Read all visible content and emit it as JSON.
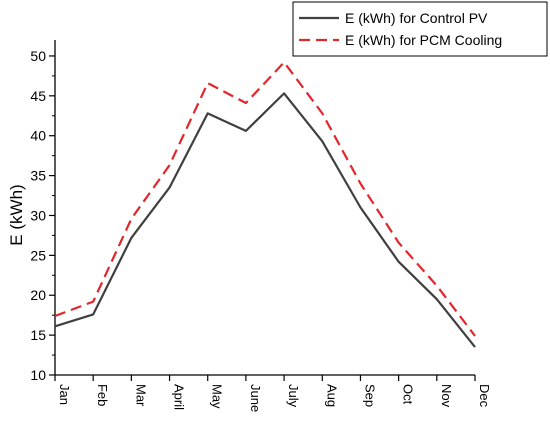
{
  "chart_data": {
    "type": "line",
    "title": "",
    "xlabel": "",
    "ylabel": "E (kWh)",
    "categories": [
      "Jan",
      "Feb",
      "Mar",
      "April",
      "May",
      "June",
      "July",
      "Aug",
      "Sep",
      "Oct",
      "Nov",
      "Dec"
    ],
    "ylim": [
      10,
      52
    ],
    "yticks": [
      "10",
      "15",
      "20",
      "25",
      "30",
      "35",
      "40",
      "45",
      "50"
    ],
    "grid": false,
    "legend_position": "top-right",
    "series": [
      {
        "name": "E (kWh) for Control PV",
        "color": "#404040",
        "style": "solid",
        "values": [
          16.1,
          17.6,
          27.2,
          33.5,
          42.8,
          40.6,
          45.3,
          39.3,
          31.0,
          24.2,
          19.5,
          13.5
        ]
      },
      {
        "name": "E (kWh) for PCM Cooling",
        "color": "#e3262b",
        "style": "dashed",
        "values": [
          17.4,
          19.2,
          29.6,
          36.3,
          46.6,
          44.1,
          49.2,
          42.8,
          34.0,
          26.6,
          21.2,
          14.9
        ]
      }
    ]
  }
}
